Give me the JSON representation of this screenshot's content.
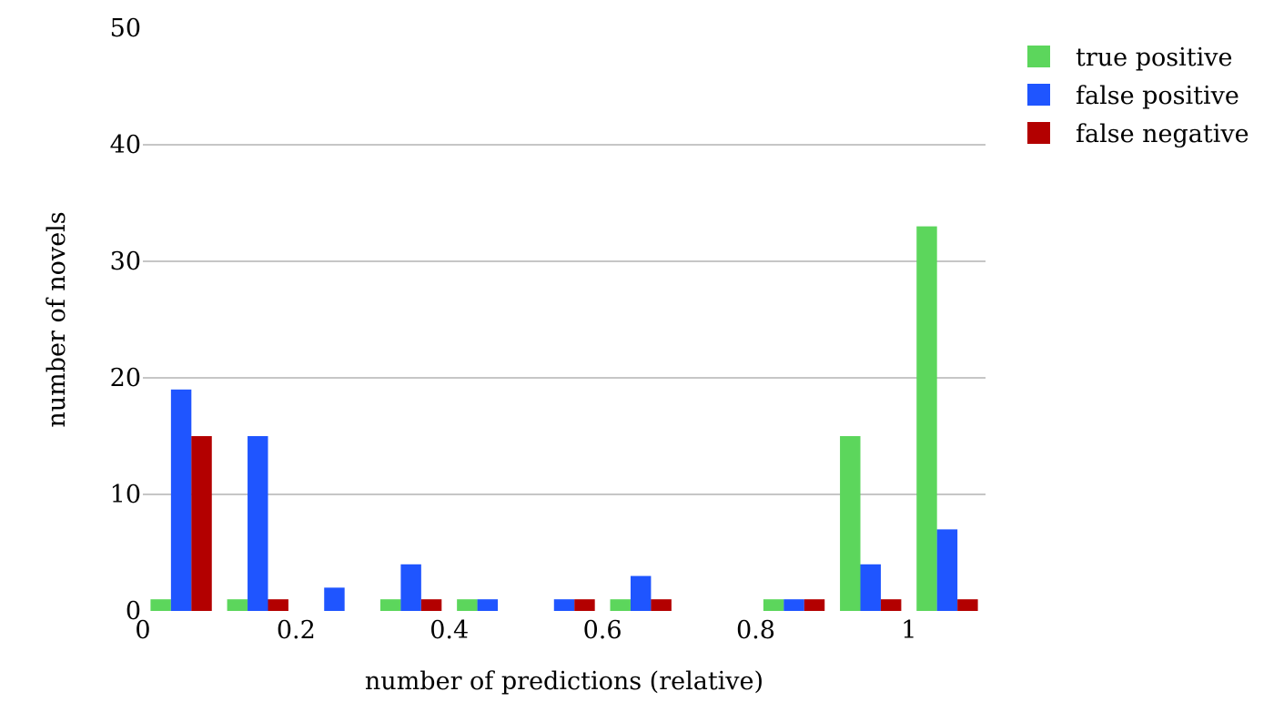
{
  "chart_data": {
    "type": "bar",
    "title": "",
    "xlabel": "number of predictions (relative)",
    "ylabel": "number of novels",
    "ylim": [
      0,
      50
    ],
    "xlim": [
      0,
      1.1
    ],
    "yticks": [
      0,
      10,
      20,
      30,
      40,
      50
    ],
    "xticks": [
      0,
      0.2,
      0.4,
      0.6,
      0.8,
      1
    ],
    "ytick_labels": [
      "0",
      "10",
      "20",
      "30",
      "40",
      "50"
    ],
    "xtick_labels": [
      "0",
      "0.2",
      "0.4",
      "0.6",
      "0.8",
      "1"
    ],
    "categories": [
      0.05,
      0.15,
      0.25,
      0.35,
      0.45,
      0.55,
      0.65,
      0.75,
      0.85,
      0.95,
      1.05
    ],
    "grid": true,
    "legend_position": "top-right",
    "series": [
      {
        "name": "true positive",
        "color": "#5cd65c",
        "values": [
          1,
          1,
          0,
          1,
          1,
          0,
          1,
          0,
          1,
          15,
          33
        ]
      },
      {
        "name": "false positive",
        "color": "#1f55ff",
        "values": [
          19,
          15,
          2,
          4,
          1,
          1,
          3,
          0,
          1,
          4,
          7
        ]
      },
      {
        "name": "false negative",
        "color": "#b30000",
        "values": [
          15,
          1,
          0,
          1,
          0,
          1,
          1,
          0,
          1,
          1,
          1
        ]
      }
    ]
  }
}
